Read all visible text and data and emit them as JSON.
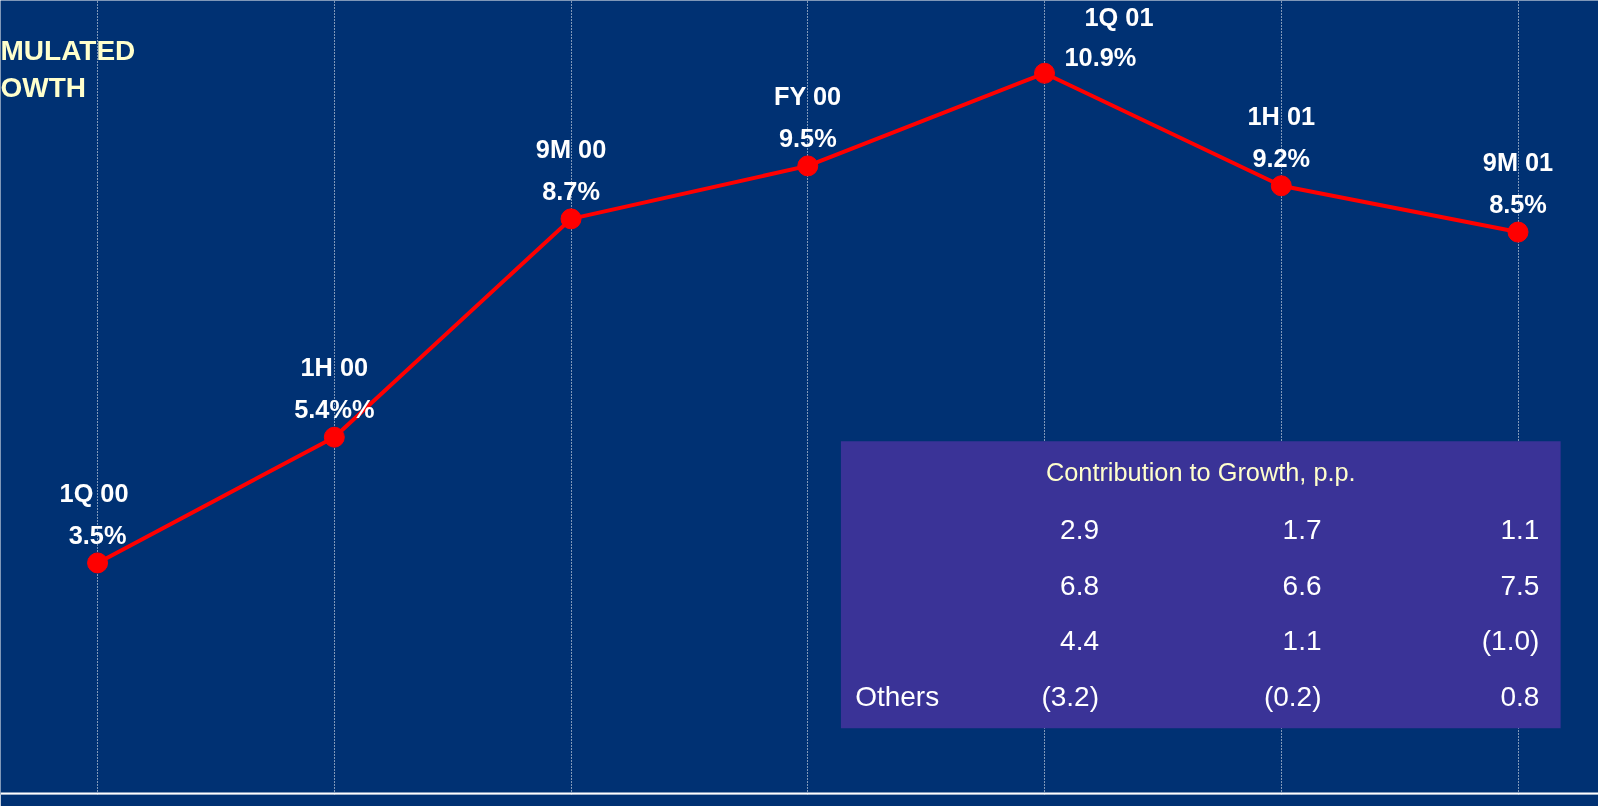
{
  "chart_data": {
    "type": "line",
    "title": "MULATED\nOWTH",
    "categories": [
      "1Q  00",
      "1H 00",
      "9M 00",
      "FY 00",
      "1Q  01",
      "1H 01",
      "9M 01"
    ],
    "series": [
      {
        "color": "#ff0000",
        "values": [
          3.5,
          5.4,
          8.7,
          9.5,
          10.9,
          9.2,
          8.5
        ],
        "value_labels": [
          "3.5%",
          "5.4%%",
          "8.7%",
          "9.5%",
          "10.9%",
          "9.2%",
          "8.5%"
        ]
      }
    ],
    "ylim": [
      0,
      12
    ],
    "tick_labels": false,
    "grid": "x",
    "marker": "circle",
    "line_style": "solid",
    "legend": false,
    "annotations": [
      "Contribution to Growth, p.p.",
      "2.9 1.7 1.1",
      "6.8 6.6 7.5",
      "4.4 1.1 (1.0)",
      "Others (3.2) (0.2) 0.8"
    ]
  }
}
